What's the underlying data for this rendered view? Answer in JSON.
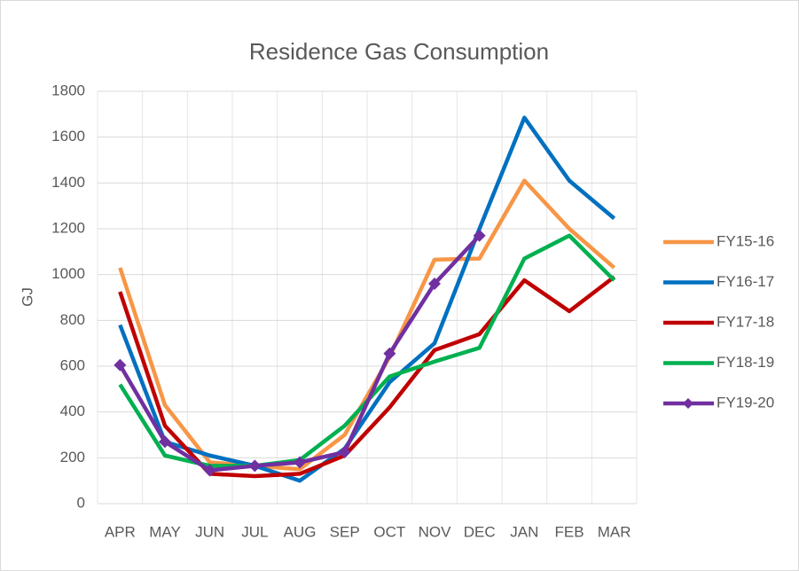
{
  "chart_data": {
    "type": "line",
    "title": "Residence Gas Consumption",
    "y_label": "GJ",
    "categories": [
      "APR",
      "MAY",
      "JUN",
      "JUL",
      "AUG",
      "SEP",
      "OCT",
      "NOV",
      "DEC",
      "JAN",
      "FEB",
      "MAR"
    ],
    "series": [
      {
        "name": "FY15-16",
        "color": "#f79646",
        "values": [
          1030,
          430,
          180,
          165,
          150,
          300,
          640,
          1065,
          1070,
          1410,
          1200,
          1030
        ]
      },
      {
        "name": "FY16-17",
        "color": "#0070c0",
        "values": [
          780,
          270,
          210,
          165,
          100,
          240,
          530,
          700,
          1200,
          1685,
          1410,
          1245
        ]
      },
      {
        "name": "FY17-18",
        "color": "#c00000",
        "values": [
          925,
          340,
          130,
          120,
          130,
          210,
          420,
          670,
          740,
          975,
          840,
          990
        ]
      },
      {
        "name": "FY18-19",
        "color": "#00b050",
        "values": [
          520,
          210,
          165,
          165,
          190,
          340,
          555,
          620,
          680,
          1070,
          1170,
          975
        ]
      },
      {
        "name": "FY19-20",
        "color": "#7030a0",
        "marker": "diamond",
        "values": [
          605,
          270,
          145,
          165,
          180,
          225,
          655,
          960,
          1170,
          null,
          null,
          null
        ]
      }
    ],
    "ylim": [
      0,
      1800
    ],
    "yticks": [
      0,
      200,
      400,
      600,
      800,
      1000,
      1200,
      1400,
      1600,
      1800
    ],
    "grid": true,
    "legend": "right"
  }
}
